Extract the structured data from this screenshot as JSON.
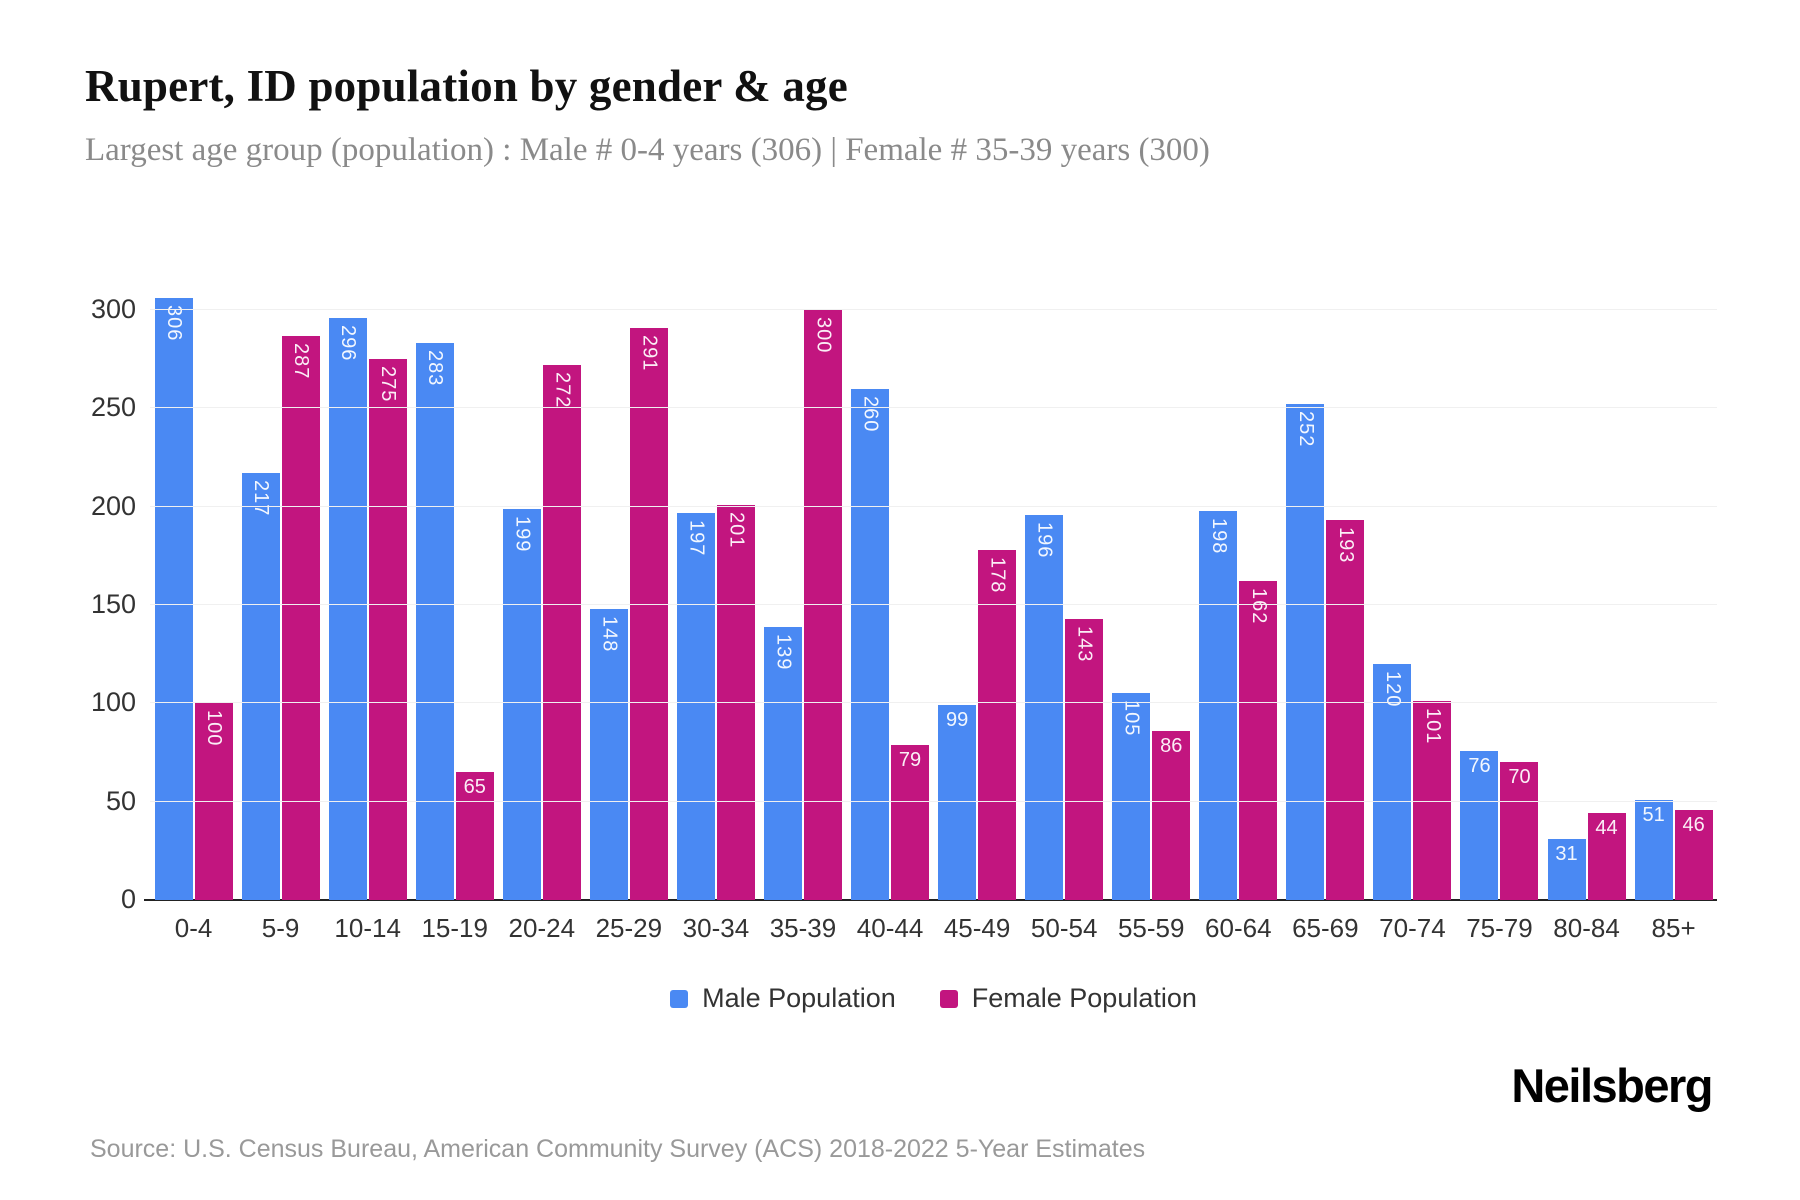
{
  "header": {
    "title": "Rupert, ID population by gender & age",
    "subtitle": "Largest age group (population) : Male # 0-4 years (306) | Female # 35-39 years (300)"
  },
  "chart_data": {
    "type": "bar",
    "title": "Rupert, ID population by gender & age",
    "categories": [
      "0-4",
      "5-9",
      "10-14",
      "15-19",
      "20-24",
      "25-29",
      "30-34",
      "35-39",
      "40-44",
      "45-49",
      "50-54",
      "55-59",
      "60-64",
      "65-69",
      "70-74",
      "75-79",
      "80-84",
      "85+"
    ],
    "series": [
      {
        "name": "Male Population",
        "color": "#4A89F3",
        "values": [
          306,
          217,
          296,
          283,
          199,
          148,
          197,
          139,
          260,
          99,
          196,
          105,
          198,
          252,
          120,
          76,
          31,
          51
        ]
      },
      {
        "name": "Female Population",
        "color": "#C2157F",
        "values": [
          100,
          287,
          275,
          65,
          272,
          291,
          201,
          300,
          79,
          178,
          143,
          86,
          162,
          193,
          101,
          70,
          44,
          46
        ]
      }
    ],
    "xlabel": "",
    "ylabel": "",
    "ylim": [
      0,
      300
    ],
    "yticks": [
      0,
      50,
      100,
      150,
      200,
      250,
      300
    ],
    "grid": true,
    "legend_position": "bottom",
    "bar_value_labels": "white, inside top, rotated 90deg when 3 digits"
  },
  "footer": {
    "source": "Source: U.S. Census Bureau, American Community Survey (ACS) 2018-2022 5-Year Estimates",
    "brand": "Neilsberg"
  }
}
